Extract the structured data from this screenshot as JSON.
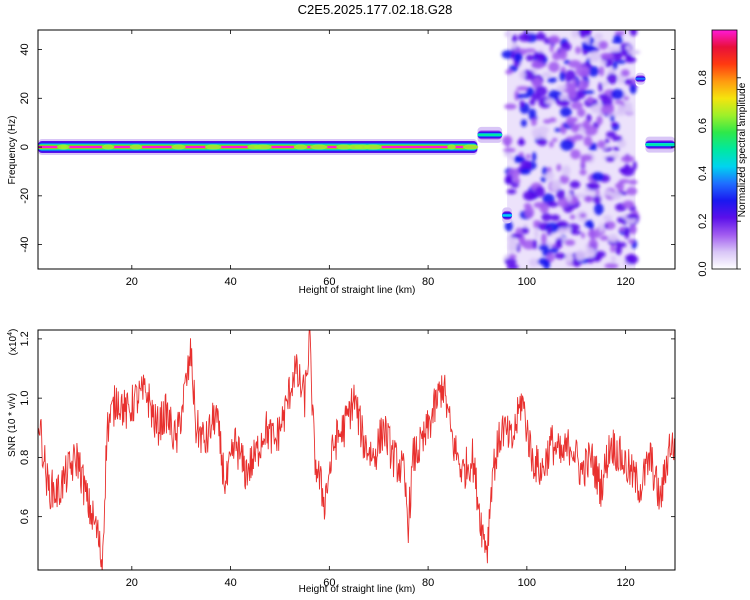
{
  "title": "C2E5.2025.177.02.18.G28",
  "colors": {
    "snr_line": "#e8302e",
    "frame": "#000000"
  },
  "colormap": [
    "#ffffff",
    "#d9c6f7",
    "#a25cf0",
    "#5b10ea",
    "#1a18f0",
    "#1f6dff",
    "#00d4f0",
    "#00e8a0",
    "#2ee84a",
    "#9ef02a",
    "#f5e40e",
    "#ff9a10",
    "#ff3a10",
    "#e8103a",
    "#ff19d8"
  ],
  "chart_data": [
    {
      "type": "heatmap",
      "xlabel": "Height of straight line (km)",
      "ylabel": "Frequency (Hz)",
      "xlim": [
        1,
        130
      ],
      "ylim": [
        -50,
        48
      ],
      "x_ticks": [
        20,
        40,
        60,
        80,
        100,
        120
      ],
      "y_ticks": [
        40,
        20,
        0,
        -20,
        -40
      ],
      "colorbar": {
        "label": "Normalized spectral amplitude",
        "range": [
          0,
          1
        ],
        "ticks": [
          "0.0",
          "0.2",
          "0.4",
          "0.6",
          "0.8"
        ],
        "tick_values": [
          0.0,
          0.2,
          0.4,
          0.6,
          0.8
        ]
      },
      "bands": [
        {
          "x_start": 1,
          "x_end": 90,
          "freq_center": 0,
          "amplitude": 1.0
        },
        {
          "x_start": 90,
          "x_end": 95,
          "freq_center": 5,
          "amplitude": 0.5
        },
        {
          "x_start": 95,
          "x_end": 97,
          "freq_center": -28,
          "amplitude": 0.45
        },
        {
          "x_start": 122,
          "x_end": 124,
          "freq_center": 28,
          "amplitude": 0.35
        },
        {
          "x_start": 124,
          "x_end": 130,
          "freq_center": 1,
          "amplitude": 0.5
        }
      ],
      "noise_region": {
        "x_start": 96,
        "x_end": 122,
        "freq_range": [
          -50,
          48
        ],
        "amplitude_range": [
          0.05,
          0.3
        ]
      }
    },
    {
      "type": "line",
      "xlabel": "Height of straight line (km)",
      "ylabel": "SNR (10 * v/v)",
      "y_multiplier": "(x10",
      "y_multiplier_exp": "4",
      "y_multiplier_close": ")",
      "xlim": [
        1,
        130
      ],
      "ylim": [
        0.42,
        1.23
      ],
      "x_ticks": [
        20,
        40,
        60,
        80,
        100,
        120
      ],
      "y_ticks": [
        "0.6",
        "0.8",
        "1.0",
        "1.2"
      ],
      "y_tick_values": [
        0.6,
        0.8,
        1.0,
        1.2
      ],
      "series": [
        {
          "x": [
            1,
            3,
            5,
            7,
            9,
            11,
            13,
            14,
            15,
            17,
            19,
            21,
            23,
            25,
            27,
            29,
            31,
            32,
            33,
            35,
            37,
            39,
            41,
            43,
            45,
            47,
            49,
            51,
            53,
            55,
            56,
            57,
            59,
            61,
            63,
            65,
            67,
            69,
            71,
            73,
            75,
            76,
            77,
            79,
            81,
            83,
            85,
            87,
            89,
            91,
            92,
            93,
            95,
            97,
            99,
            101,
            103,
            105,
            107,
            109,
            111,
            113,
            115,
            117,
            119,
            121,
            123,
            125,
            127,
            129,
            130
          ],
          "y": [
            0.95,
            0.7,
            0.68,
            0.75,
            0.8,
            0.65,
            0.55,
            0.44,
            0.9,
            1.0,
            0.95,
            1.0,
            1.02,
            0.9,
            0.95,
            0.85,
            1.05,
            1.15,
            0.9,
            0.85,
            0.95,
            0.7,
            0.85,
            0.75,
            0.8,
            0.9,
            0.85,
            0.95,
            1.1,
            1.0,
            1.2,
            0.8,
            0.65,
            0.85,
            0.9,
            1.0,
            0.85,
            0.8,
            0.9,
            0.8,
            0.75,
            0.58,
            0.8,
            0.85,
            0.95,
            1.05,
            0.85,
            0.75,
            0.8,
            0.55,
            0.5,
            0.75,
            0.9,
            0.85,
            1.0,
            0.8,
            0.75,
            0.85,
            0.8,
            0.85,
            0.75,
            0.8,
            0.7,
            0.85,
            0.8,
            0.75,
            0.7,
            0.8,
            0.65,
            0.85,
            0.82
          ]
        }
      ]
    }
  ]
}
